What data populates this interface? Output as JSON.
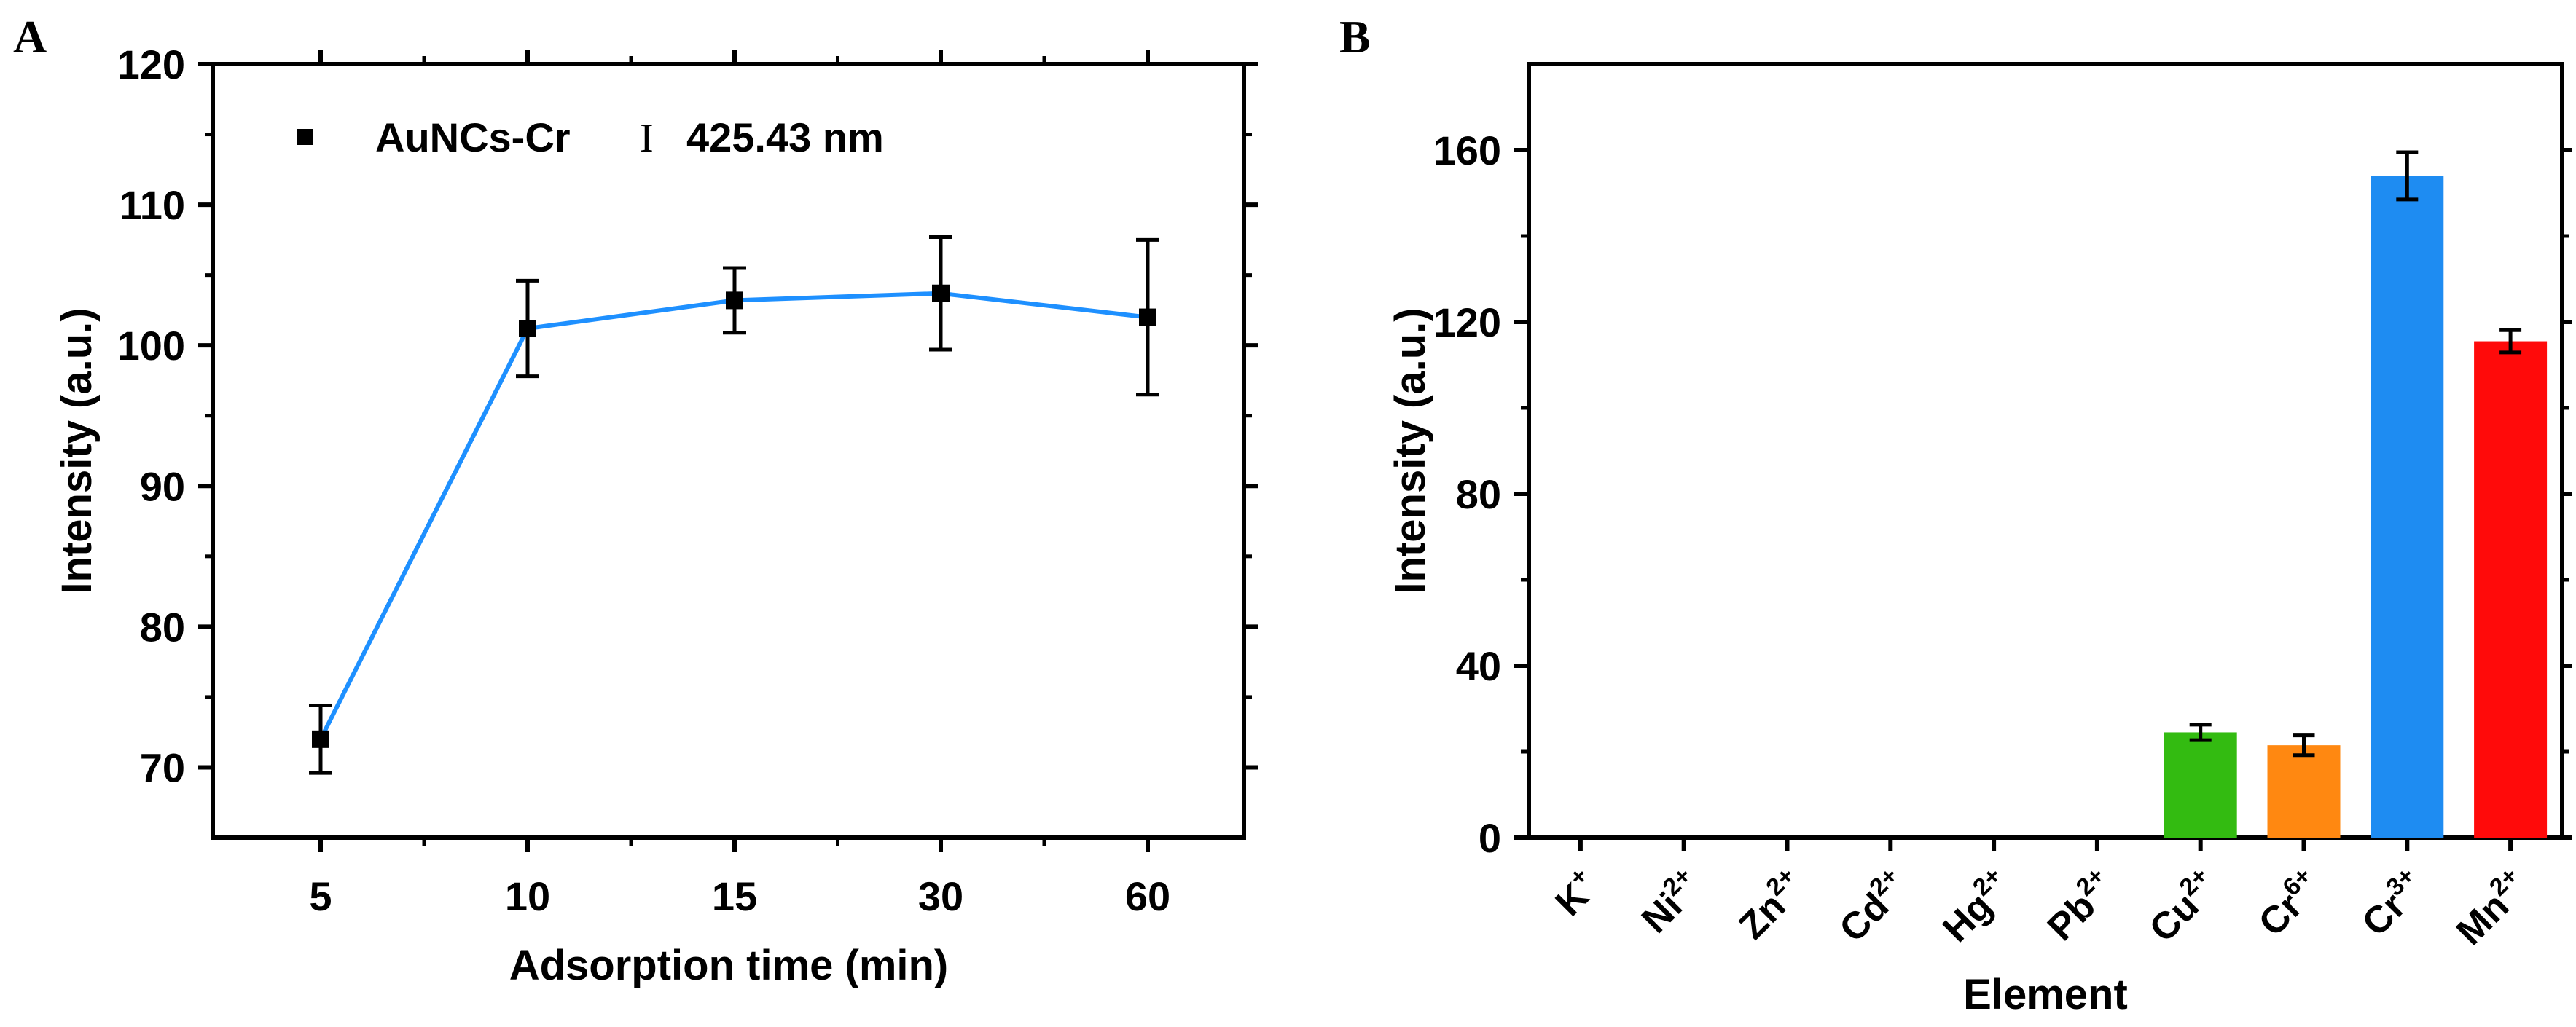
{
  "chart_data": [
    {
      "type": "line",
      "panel_label": "A",
      "title": "",
      "xlabel": "Adsorption time (min)",
      "ylabel": "Intensity (a.u.)",
      "ylim": [
        65,
        120
      ],
      "yticks": [
        "70",
        "80",
        "90",
        "100",
        "110",
        "120"
      ],
      "categories": [
        "5",
        "10",
        "15",
        "30",
        "60"
      ],
      "series": [
        {
          "name": "AuNCs-Cr",
          "annotation": "425.43 nm",
          "values": [
            72,
            101.2,
            103.2,
            103.7,
            102
          ],
          "errors": [
            2.4,
            3.4,
            2.3,
            4.0,
            5.5
          ],
          "line_color": "#1E90FF",
          "marker_color": "#000000"
        }
      ],
      "legend": {
        "position": "top-left",
        "marker": "■",
        "error_glyph": "I"
      }
    },
    {
      "type": "bar",
      "panel_label": "B",
      "title": "",
      "xlabel": "Element",
      "ylabel": "Intensity (a.u.)",
      "ylim": [
        0,
        180
      ],
      "yticks": [
        "0",
        "40",
        "80",
        "120",
        "160"
      ],
      "categories": [
        {
          "base": "K",
          "sup": "+"
        },
        {
          "base": "Ni",
          "sup": "2+"
        },
        {
          "base": "Zn",
          "sup": "2+"
        },
        {
          "base": "Cd",
          "sup": "2+"
        },
        {
          "base": "Hg",
          "sup": "2+"
        },
        {
          "base": "Pb",
          "sup": "2+"
        },
        {
          "base": "Cu",
          "sup": "2+"
        },
        {
          "base": "Cr",
          "sup": "6+"
        },
        {
          "base": "Cr",
          "sup": "3+"
        },
        {
          "base": "Mn",
          "sup": "2+"
        }
      ],
      "values": [
        0,
        0,
        0,
        0,
        0,
        0,
        24.5,
        21.5,
        154,
        115.5
      ],
      "errors": [
        0,
        0,
        0,
        0,
        0,
        0,
        1.8,
        2.3,
        5.5,
        2.6
      ],
      "colors": [
        "#000000",
        "#000000",
        "#000000",
        "#000000",
        "#000000",
        "#000000",
        "#33BB11",
        "#FF8811",
        "#1E8CF2",
        "#FF0A0A"
      ]
    }
  ]
}
